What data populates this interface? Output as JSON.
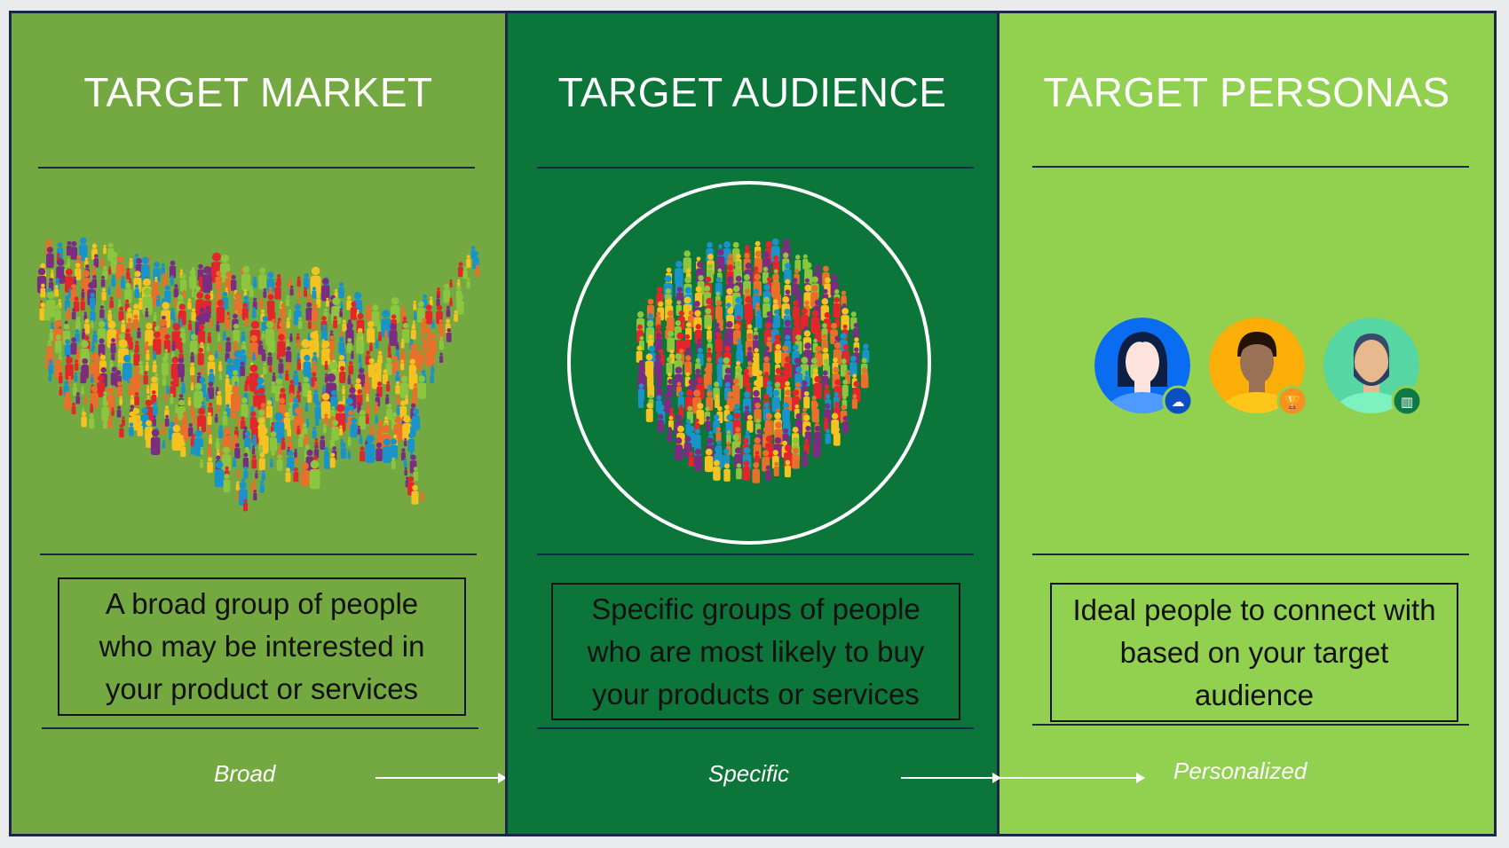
{
  "colors": {
    "market_panel": "#74a840",
    "audience_panel": "#0c763a",
    "personas_panel": "#92d050",
    "border": "#1b2748",
    "people": [
      "#e3262b",
      "#e8702a",
      "#f6c220",
      "#1a93c8",
      "#7b2d82",
      "#8cc63f"
    ]
  },
  "columns": [
    {
      "title": "TARGET MARKET",
      "description": "A broad group of people who may be interested in your product or services",
      "label": "Broad",
      "illustration": "us-map-crowd"
    },
    {
      "title": "TARGET AUDIENCE",
      "description": "Specific groups of people who are most likely to buy your products or services",
      "label": "Specific",
      "illustration": "circle-crowd"
    },
    {
      "title": "TARGET PERSONAS",
      "description": "Ideal people to connect with based on your target audience",
      "label": "Personalized",
      "illustration": "persona-avatars"
    }
  ],
  "personas": [
    {
      "icon": "woman-avatar",
      "badge": "cloud-gear-icon",
      "bg": "#0a6cf0",
      "badge_color": "#0c4fc2"
    },
    {
      "icon": "man-avatar",
      "badge": "trophy-icon",
      "bg": "#fbad08",
      "badge_color": "#f6901e"
    },
    {
      "icon": "bearded-man-avatar",
      "badge": "building-icon",
      "bg": "#55d6a2",
      "badge_color": "#0d7a45"
    }
  ]
}
